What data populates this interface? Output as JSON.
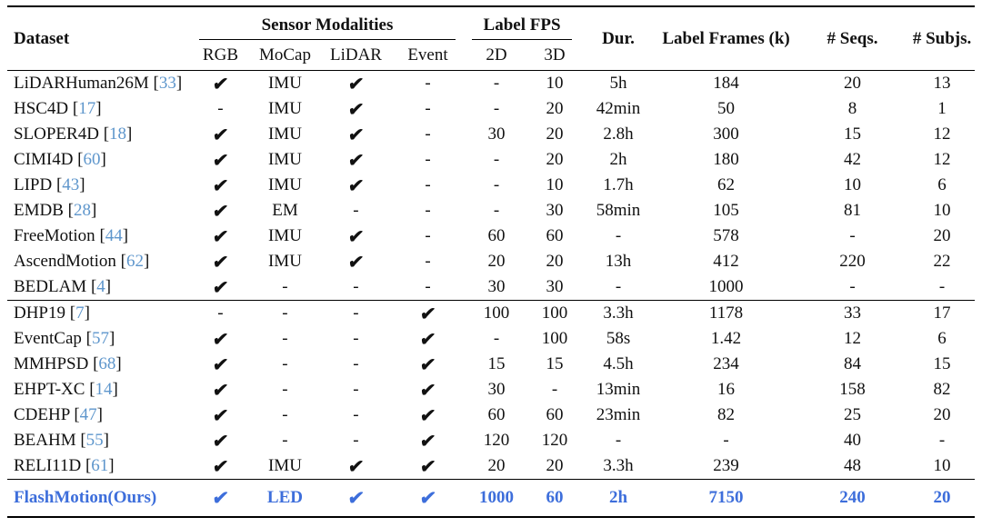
{
  "header": {
    "dataset": "Dataset",
    "sensor_modalities": "Sensor Modalities",
    "sensor_cols": [
      "RGB",
      "MoCap",
      "LiDAR",
      "Event"
    ],
    "label_fps": "Label FPS",
    "fps_cols": [
      "2D",
      "3D"
    ],
    "dur": "Dur.",
    "label_frames": "Label Frames (k)",
    "seqs": "# Seqs.",
    "subjs": "# Subjs."
  },
  "format": {
    "check_glyph": "✔",
    "dash": "-",
    "cite_open": "[",
    "cite_close": "]"
  },
  "colors": {
    "citation_number": "#5e96cc",
    "ours_highlight": "#3d6edb",
    "text": "#111111",
    "rule": "#000000"
  },
  "col_keys": [
    "rgb",
    "mocap",
    "lidar",
    "event",
    "fps-2d",
    "fps-3d",
    "duration",
    "label-frames",
    "num-seqs",
    "num-subjs"
  ],
  "groups": [
    {
      "rows": [
        {
          "name": "LiDARHuman26M",
          "cite": "33",
          "cells": [
            "✔",
            "IMU",
            "✔",
            "-",
            "-",
            "10",
            "5h",
            "184",
            "20",
            "13"
          ]
        },
        {
          "name": "HSC4D",
          "cite": "17",
          "cells": [
            "-",
            "IMU",
            "✔",
            "-",
            "-",
            "20",
            "42min",
            "50",
            "8",
            "1"
          ]
        },
        {
          "name": "SLOPER4D",
          "cite": "18",
          "cells": [
            "✔",
            "IMU",
            "✔",
            "-",
            "30",
            "20",
            "2.8h",
            "300",
            "15",
            "12"
          ]
        },
        {
          "name": "CIMI4D",
          "cite": "60",
          "cells": [
            "✔",
            "IMU",
            "✔",
            "-",
            "-",
            "20",
            "2h",
            "180",
            "42",
            "12"
          ]
        },
        {
          "name": "LIPD",
          "cite": "43",
          "cells": [
            "✔",
            "IMU",
            "✔",
            "-",
            "-",
            "10",
            "1.7h",
            "62",
            "10",
            "6"
          ]
        },
        {
          "name": "EMDB",
          "cite": "28",
          "cells": [
            "✔",
            "EM",
            "-",
            "-",
            "-",
            "30",
            "58min",
            "105",
            "81",
            "10"
          ]
        },
        {
          "name": "FreeMotion",
          "cite": "44",
          "cells": [
            "✔",
            "IMU",
            "✔",
            "-",
            "60",
            "60",
            "-",
            "578",
            "-",
            "20"
          ]
        },
        {
          "name": "AscendMotion",
          "cite": "62",
          "cells": [
            "✔",
            "IMU",
            "✔",
            "-",
            "20",
            "20",
            "13h",
            "412",
            "220",
            "22"
          ]
        },
        {
          "name": "BEDLAM",
          "cite": "4",
          "cells": [
            "✔",
            "-",
            "-",
            "-",
            "30",
            "30",
            "-",
            "1000",
            "-",
            "-"
          ]
        }
      ]
    },
    {
      "rows": [
        {
          "name": "DHP19",
          "cite": "7",
          "cells": [
            "-",
            "-",
            "-",
            "✔",
            "100",
            "100",
            "3.3h",
            "1178",
            "33",
            "17"
          ]
        },
        {
          "name": "EventCap",
          "cite": "57",
          "cells": [
            "✔",
            "-",
            "-",
            "✔",
            "-",
            "100",
            "58s",
            "1.42",
            "12",
            "6"
          ]
        },
        {
          "name": "MMHPSD",
          "cite": "68",
          "cells": [
            "✔",
            "-",
            "-",
            "✔",
            "15",
            "15",
            "4.5h",
            "234",
            "84",
            "15"
          ]
        },
        {
          "name": "EHPT-XC",
          "cite": "14",
          "cells": [
            "✔",
            "-",
            "-",
            "✔",
            "30",
            "-",
            "13min",
            "16",
            "158",
            "82"
          ]
        },
        {
          "name": "CDEHP",
          "cite": "47",
          "cells": [
            "✔",
            "-",
            "-",
            "✔",
            "60",
            "60",
            "23min",
            "82",
            "25",
            "20"
          ]
        },
        {
          "name": "BEAHM",
          "cite": "55",
          "cells": [
            "✔",
            "-",
            "-",
            "✔",
            "120",
            "120",
            "-",
            "-",
            "40",
            "-"
          ]
        },
        {
          "name": "RELI11D",
          "cite": "61",
          "cells": [
            "✔",
            "IMU",
            "✔",
            "✔",
            "20",
            "20",
            "3.3h",
            "239",
            "48",
            "10"
          ]
        }
      ]
    }
  ],
  "ours": {
    "name": "FlashMotion(Ours)",
    "cite": "",
    "cells": [
      "✔",
      "LED",
      "✔",
      "✔",
      "1000",
      "60",
      "2h",
      "7150",
      "240",
      "20"
    ]
  }
}
